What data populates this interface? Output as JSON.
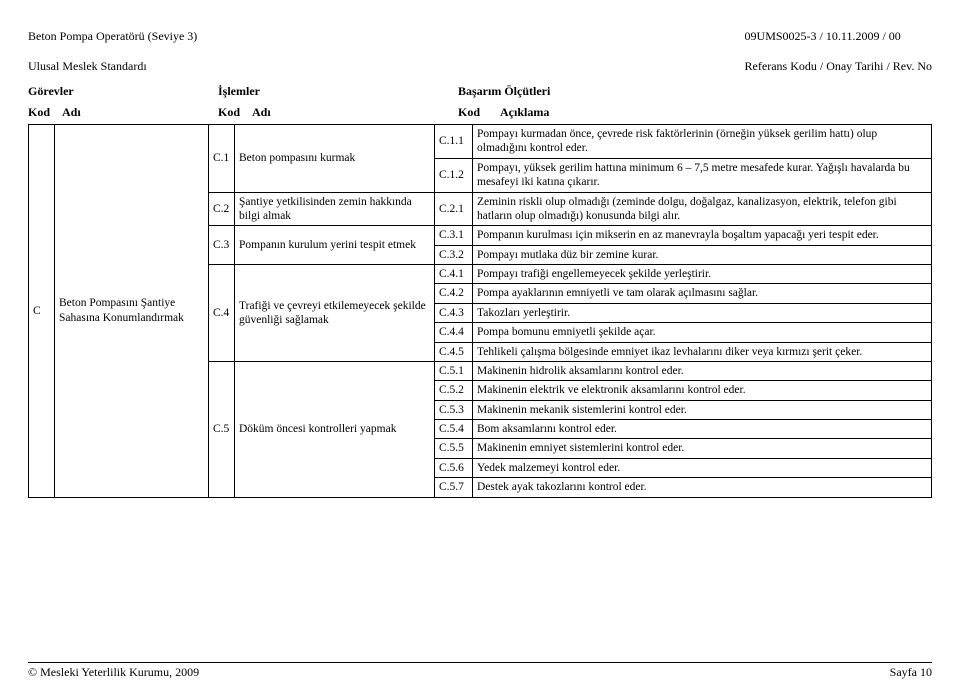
{
  "header": {
    "left_line1": "Beton Pompa Operatörü (Seviye 3)",
    "left_line2": "Ulusal Meslek Standardı",
    "right_line1": "09UMS0025-3 / 10.11.2009 / 00",
    "right_line2": "Referans Kodu / Onay Tarihi / Rev. No"
  },
  "section_labels": {
    "gorevler": "Görevler",
    "islemler": "İşlemler",
    "basarim": "Başarım Ölçütleri"
  },
  "col_headers": {
    "kod": "Kod",
    "adi": "Adı",
    "aciklama": "Açıklama"
  },
  "task": {
    "kod": "C",
    "adi": "Beton Pompasını Şantiye Sahasına Konumlandırmak"
  },
  "ops": {
    "c1": {
      "kod": "C.1",
      "adi": "Beton pompasını kurmak"
    },
    "c2": {
      "kod": "C.2",
      "adi": "Şantiye yetkilisinden zemin hakkında bilgi almak"
    },
    "c3": {
      "kod": "C.3",
      "adi": "Pompanın kurulum yerini tespit etmek"
    },
    "c4": {
      "kod": "C.4",
      "adi": "Trafiği ve çevreyi etkilemeyecek şekilde güvenliği sağlamak"
    },
    "c5": {
      "kod": "C.5",
      "adi": "Döküm öncesi kontrolleri yapmak"
    }
  },
  "crit": {
    "c11": {
      "kod": "C.1.1",
      "txt": "Pompayı kurmadan önce, çevrede risk faktörlerinin (örneğin yüksek gerilim hattı) olup olmadığını kontrol eder."
    },
    "c12": {
      "kod": "C.1.2",
      "txt": "Pompayı, yüksek gerilim hattına minimum 6 – 7,5 metre mesafede kurar. Yağışlı havalarda bu mesafeyi iki katına çıkarır."
    },
    "c21": {
      "kod": "C.2.1",
      "txt": "Zeminin riskli olup olmadığı (zeminde dolgu, doğalgaz, kanalizasyon, elektrik, telefon gibi hatların olup olmadığı) konusunda bilgi alır."
    },
    "c31": {
      "kod": "C.3.1",
      "txt": "Pompanın kurulması için mikserin en az manevrayla boşaltım yapacağı yeri tespit eder."
    },
    "c32": {
      "kod": "C.3.2",
      "txt": "Pompayı mutlaka düz bir zemine kurar."
    },
    "c41": {
      "kod": "C.4.1",
      "txt": "Pompayı trafiği engellemeyecek şekilde yerleştirir."
    },
    "c42": {
      "kod": "C.4.2",
      "txt": "Pompa ayaklarının emniyetli ve tam olarak açılmasını sağlar."
    },
    "c43": {
      "kod": "C.4.3",
      "txt": "Takozları yerleştirir."
    },
    "c44": {
      "kod": "C.4.4",
      "txt": "Pompa bomunu emniyetli şekilde açar."
    },
    "c45": {
      "kod": "C.4.5",
      "txt": "Tehlikeli çalışma bölgesinde emniyet ikaz levhalarını diker veya kırmızı şerit çeker."
    },
    "c51": {
      "kod": "C.5.1",
      "txt": "Makinenin hidrolik aksamlarını kontrol eder."
    },
    "c52": {
      "kod": "C.5.2",
      "txt": "Makinenin elektrik ve elektronik aksamlarını kontrol eder."
    },
    "c53": {
      "kod": "C.5.3",
      "txt": "Makinenin mekanik sistemlerini kontrol eder."
    },
    "c54": {
      "kod": "C.5.4",
      "txt": "Bom aksamlarını kontrol eder."
    },
    "c55": {
      "kod": "C.5.5",
      "txt": "Makinenin emniyet sistemlerini kontrol eder."
    },
    "c56": {
      "kod": "C.5.6",
      "txt": "Yedek malzemeyi kontrol eder."
    },
    "c57": {
      "kod": "C.5.7",
      "txt": "Destek ayak takozlarını kontrol eder."
    }
  },
  "footer": {
    "left": "© Mesleki Yeterlilik Kurumu, 2009",
    "right": "Sayfa 10"
  }
}
